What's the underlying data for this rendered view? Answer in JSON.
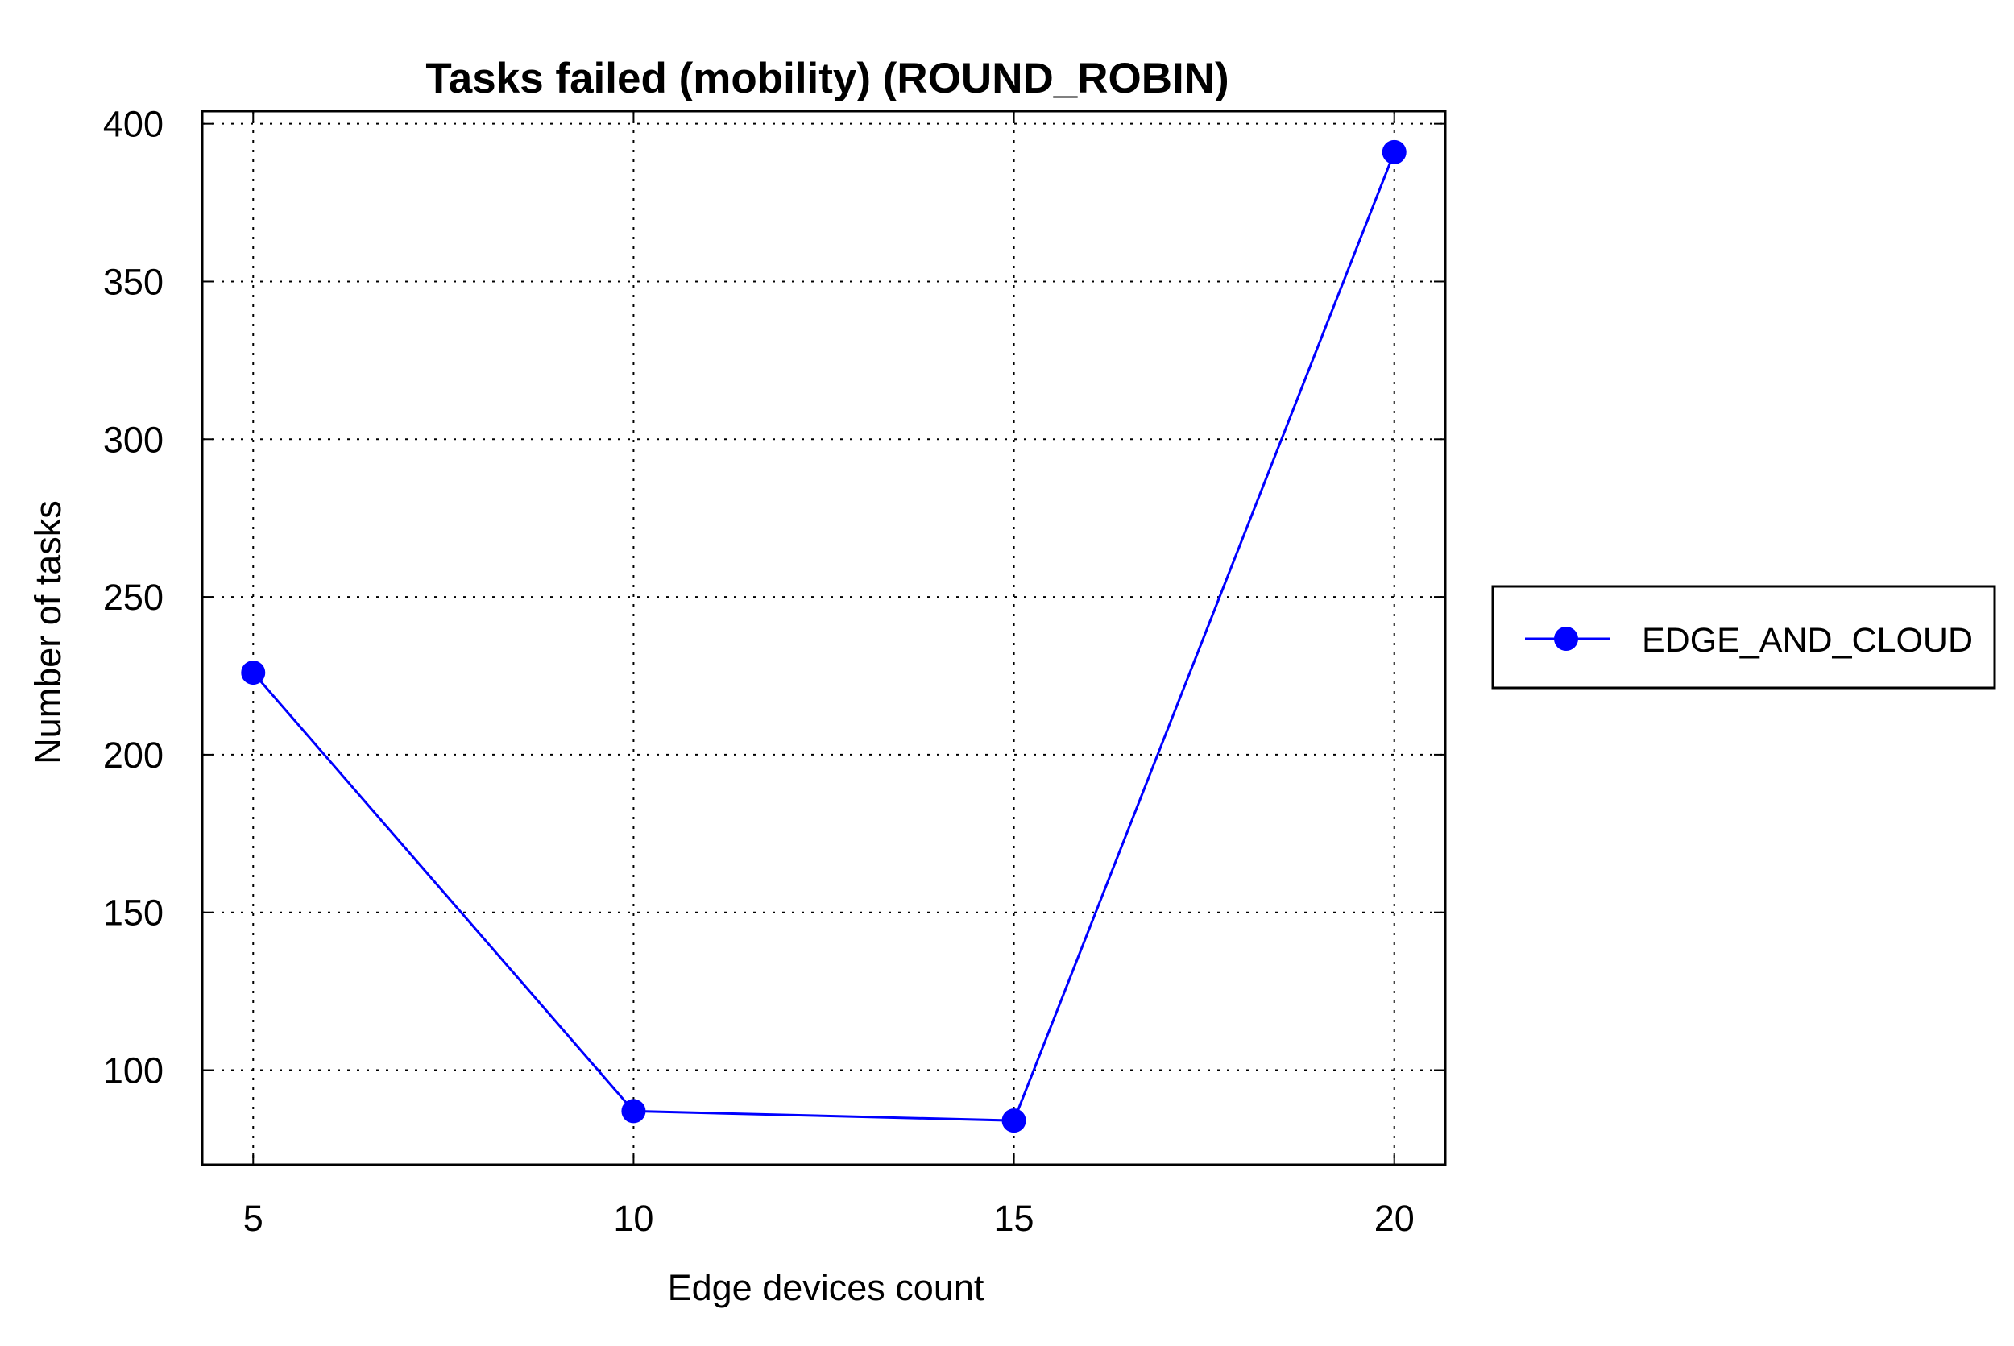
{
  "chart_data": {
    "type": "line",
    "title": "Tasks failed (mobility) (ROUND_ROBIN)",
    "xlabel": "Edge devices count",
    "ylabel": "Number of tasks",
    "x": [
      5,
      10,
      15,
      20
    ],
    "x_tick_labels": [
      "5",
      "10",
      "15",
      "20"
    ],
    "y_tick_labels": [
      "100",
      "150",
      "200",
      "250",
      "300",
      "350",
      "400"
    ],
    "y_ticks": [
      100,
      150,
      200,
      250,
      300,
      350,
      400
    ],
    "xlim": [
      4.33,
      20.67
    ],
    "ylim": [
      70,
      404
    ],
    "grid": true,
    "legend_position": "right",
    "series": [
      {
        "name": "EDGE_AND_CLOUD",
        "values": [
          226,
          87,
          84,
          391
        ],
        "color": "#0000ff",
        "marker": "circle"
      }
    ]
  }
}
